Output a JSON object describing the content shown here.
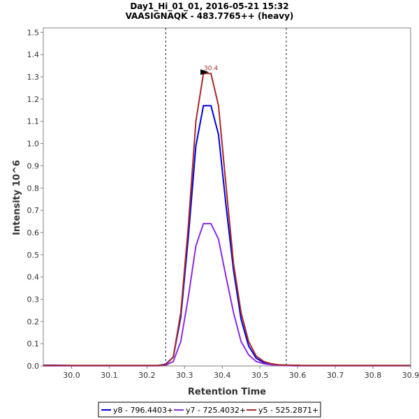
{
  "chart_data": {
    "type": "line",
    "title": "Day1_Hi_01_01, 2016-05-21 15:32",
    "subtitle": "VAASIGNAQK - 483.7765++ (heavy)",
    "xlabel": "Retention Time",
    "ylabel": "Intensity 10^6",
    "xlim": [
      29.925,
      30.9
    ],
    "ylim": [
      0,
      1.52
    ],
    "xticks": [
      "30.0",
      "30.1",
      "30.2",
      "30.3",
      "30.4",
      "30.5",
      "30.6",
      "30.7",
      "30.8",
      "30.9"
    ],
    "yticks": [
      "0.0",
      "0.1",
      "0.2",
      "0.3",
      "0.4",
      "0.5",
      "0.6",
      "0.7",
      "0.8",
      "0.9",
      "1.0",
      "1.1",
      "1.2",
      "1.3",
      "1.4",
      "1.5"
    ],
    "integration_bounds": [
      30.25,
      30.57
    ],
    "peak_annotation": {
      "label": "30.4",
      "x": 30.37,
      "y": 1.315
    },
    "x": [
      29.925,
      29.95,
      30.0,
      30.05,
      30.1,
      30.15,
      30.2,
      30.23,
      30.25,
      30.27,
      30.29,
      30.31,
      30.33,
      30.35,
      30.37,
      30.39,
      30.41,
      30.43,
      30.45,
      30.47,
      30.49,
      30.51,
      30.53,
      30.55,
      30.57,
      30.59,
      30.61,
      30.65,
      30.7,
      30.8,
      30.9
    ],
    "series": [
      {
        "name": "y8 - 796.4403+",
        "color": "#0000dd",
        "values": [
          0.003,
          0.003,
          0.002,
          0.002,
          0.002,
          0.002,
          0.002,
          0.002,
          0.008,
          0.04,
          0.22,
          0.58,
          0.99,
          1.17,
          1.17,
          1.04,
          0.72,
          0.43,
          0.21,
          0.09,
          0.035,
          0.015,
          0.008,
          0.004,
          0.003,
          0.003,
          0.002,
          0.002,
          0.002,
          0.002,
          0.002
        ]
      },
      {
        "name": "y7 - 725.4032+",
        "color": "#8a2be2",
        "values": [
          0.001,
          0.001,
          0.001,
          0.001,
          0.001,
          0.001,
          0.001,
          0.001,
          0.003,
          0.02,
          0.11,
          0.31,
          0.54,
          0.64,
          0.64,
          0.57,
          0.4,
          0.24,
          0.11,
          0.05,
          0.02,
          0.01,
          0.005,
          0.003,
          0.002,
          0.001,
          0.001,
          0.001,
          0.001,
          0.001,
          0.001
        ]
      },
      {
        "name": "y5 - 525.2871+",
        "color": "#a52a2a",
        "values": [
          0.002,
          0.002,
          0.002,
          0.002,
          0.002,
          0.002,
          0.002,
          0.002,
          0.005,
          0.04,
          0.24,
          0.63,
          1.1,
          1.315,
          1.315,
          1.17,
          0.81,
          0.46,
          0.24,
          0.11,
          0.045,
          0.02,
          0.01,
          0.005,
          0.004,
          0.003,
          0.002,
          0.002,
          0.002,
          0.002,
          0.002
        ]
      }
    ],
    "legend_position": "bottom-center"
  }
}
